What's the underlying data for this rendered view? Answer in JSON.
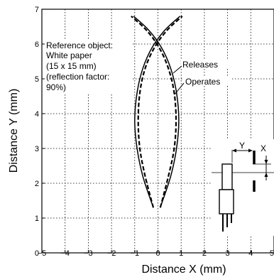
{
  "chart_data": {
    "type": "line",
    "xlabel": "Distance X (mm)",
    "ylabel": "Distance Y (mm)",
    "xlim": [
      -5,
      5
    ],
    "ylim": [
      0,
      7
    ],
    "x_ticks": [
      "−5",
      "−4",
      "−3",
      "−2",
      "−1",
      "0",
      "1",
      "2",
      "3",
      "4",
      "5"
    ],
    "y_ticks": [
      "0",
      "1",
      "2",
      "3",
      "4",
      "5",
      "6",
      "7"
    ],
    "grid": true,
    "annotation": {
      "lines": [
        "Reference object:",
        "White paper",
        "(15 x 15 mm)",
        "(reflection factor:",
        "90%)"
      ]
    },
    "series": [
      {
        "name": "Releases",
        "style": "solid",
        "curves": [
          {
            "x": [
              -0.25,
              -0.65,
              -0.9,
              -1.0,
              -0.9,
              -0.65,
              -0.25,
              0.3,
              0.95
            ],
            "y": [
              1.4,
              2.2,
              3.0,
              3.8,
              4.6,
              5.3,
              5.9,
              6.4,
              6.8
            ]
          },
          {
            "x": [
              0.15,
              0.55,
              0.8,
              0.9,
              0.8,
              0.55,
              0.15,
              -0.4,
              -1.05
            ],
            "y": [
              1.4,
              2.2,
              3.0,
              3.8,
              4.6,
              5.3,
              5.9,
              6.4,
              6.8
            ]
          }
        ]
      },
      {
        "name": "Operates",
        "style": "dashed",
        "curves": [
          {
            "x": [
              -0.2,
              -0.55,
              -0.78,
              -0.85,
              -0.78,
              -0.55,
              -0.15,
              0.4,
              1.05
            ],
            "y": [
              1.3,
              2.2,
              3.0,
              3.8,
              4.6,
              5.3,
              5.9,
              6.4,
              6.8
            ]
          },
          {
            "x": [
              0.1,
              0.45,
              0.7,
              0.78,
              0.7,
              0.45,
              0.05,
              -0.5,
              -1.15
            ],
            "y": [
              1.3,
              2.2,
              3.0,
              3.8,
              4.6,
              5.3,
              5.9,
              6.4,
              6.8
            ]
          }
        ]
      }
    ],
    "inset_labels": {
      "y": "Y",
      "x": "X"
    }
  }
}
